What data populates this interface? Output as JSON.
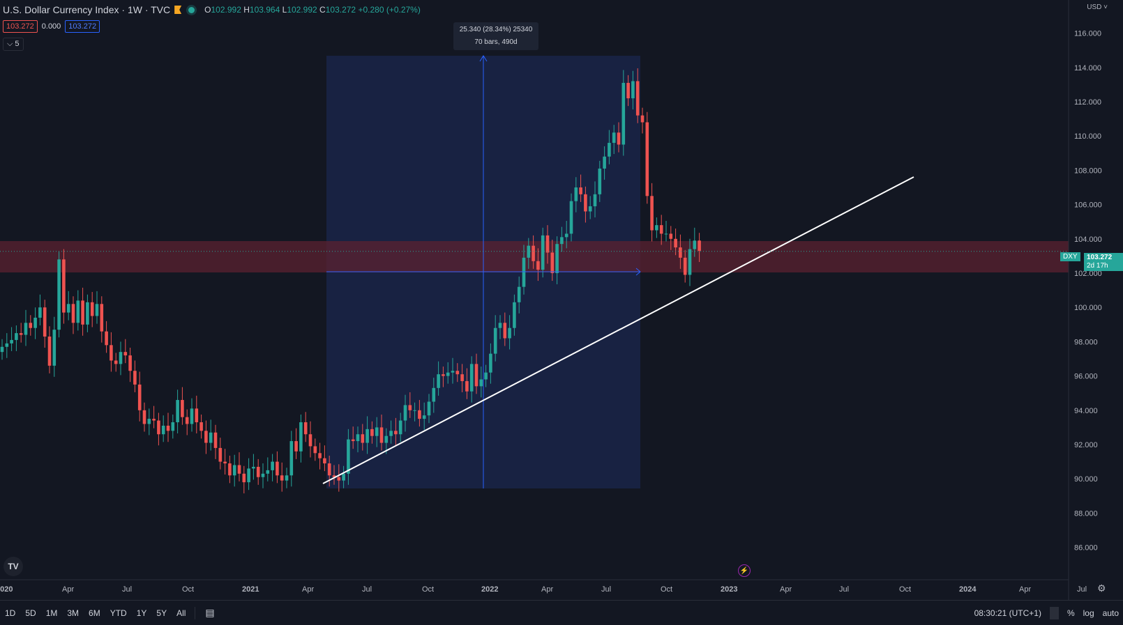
{
  "header": {
    "title": "U.S. Dollar Currency Index · 1W · TVC",
    "o_label": "O",
    "o_value": "102.992",
    "h_label": "H",
    "h_value": "103.964",
    "l_label": "L",
    "l_value": "102.992",
    "c_label": "C",
    "c_value": "103.272",
    "change": "+0.280 (+0.27%)"
  },
  "badges": {
    "bid": "103.272",
    "spread": "0.000",
    "ask": "103.272"
  },
  "indicators_toggle": "5",
  "currency": "USD",
  "measure": {
    "line1": "25.340 (28.34%) 25340",
    "line2": "70 bars, 490d"
  },
  "symbol_tag": "DXY",
  "price_tag": {
    "price": "103.272",
    "countdown": "2d 17h"
  },
  "toolbar": {
    "timeframes": [
      "1D",
      "5D",
      "1M",
      "3M",
      "6M",
      "YTD",
      "1Y",
      "5Y",
      "All"
    ],
    "clock": "08:30:21 (UTC+1)",
    "percent": "%",
    "log": "log",
    "auto": "auto"
  },
  "colors": {
    "up": "#26a69a",
    "down": "#ef5350",
    "background": "#131722",
    "zone": "#5b2230",
    "measure_box": "#1a2548"
  },
  "icons": {
    "logo": "tradingview-logo-icon",
    "flash": "flash-icon",
    "settings": "gear-icon",
    "calendar": "calendar-icon"
  },
  "chart_data": {
    "type": "candlestick",
    "title": "U.S. Dollar Currency Index",
    "y_axis_ticks": [
      116,
      114,
      112,
      110,
      108,
      106,
      104,
      102,
      100,
      98,
      96,
      94,
      92,
      90,
      88,
      86
    ],
    "ylim": [
      85,
      118
    ],
    "x_axis_labels": [
      "2020",
      "Apr",
      "Jul",
      "Oct",
      "2021",
      "Apr",
      "Jul",
      "Oct",
      "2022",
      "Apr",
      "Jul",
      "Oct",
      "2023",
      "Apr",
      "Jul",
      "Oct",
      "2024",
      "Apr",
      "Jul"
    ],
    "closes": [
      97.7,
      97.9,
      98.1,
      98.5,
      98.4,
      99.1,
      98.8,
      99.4,
      100.0,
      98.3,
      96.6,
      98.7,
      102.8,
      99.7,
      100.2,
      99.1,
      100.4,
      99.0,
      100.3,
      99.5,
      100.2,
      98.6,
      97.8,
      96.9,
      96.7,
      97.4,
      97.2,
      96.3,
      95.5,
      94.0,
      93.2,
      93.5,
      93.4,
      92.6,
      93.1,
      92.8,
      93.3,
      94.6,
      93.6,
      93.2,
      94.1,
      93.3,
      92.8,
      92.1,
      92.7,
      91.8,
      91.0,
      90.9,
      90.2,
      90.8,
      90.3,
      89.8,
      90.6,
      90.7,
      90.1,
      90.3,
      90.5,
      91.0,
      90.2,
      89.9,
      90.2,
      92.2,
      91.6,
      93.3,
      92.6,
      91.9,
      91.5,
      91.2,
      90.9,
      90.2,
      90.1,
      89.9,
      90.3,
      92.3,
      92.2,
      92.6,
      92.1,
      92.9,
      92.5,
      93.0,
      92.1,
      92.5,
      92.8,
      92.6,
      93.4,
      94.3,
      94.0,
      94.0,
      93.5,
      93.7,
      94.5,
      95.3,
      96.1,
      96.0,
      96.2,
      96.3,
      96.1,
      95.7,
      95.1,
      96.7,
      95.4,
      95.8,
      96.2,
      97.3,
      98.8,
      99.1,
      98.2,
      98.8,
      100.3,
      101.2,
      102.9,
      103.6,
      102.7,
      102.2,
      104.2,
      103.2,
      102.0,
      103.7,
      104.1,
      104.3,
      106.2,
      107.0,
      106.6,
      105.6,
      105.9,
      106.6,
      108.1,
      108.8,
      109.6,
      110.2,
      109.5,
      113.1,
      112.2,
      113.2,
      111.2,
      110.8,
      106.5,
      104.5,
      104.8,
      104.3,
      104.3,
      104.0,
      103.5,
      102.9,
      101.9,
      103.4,
      103.9,
      103.3
    ]
  }
}
